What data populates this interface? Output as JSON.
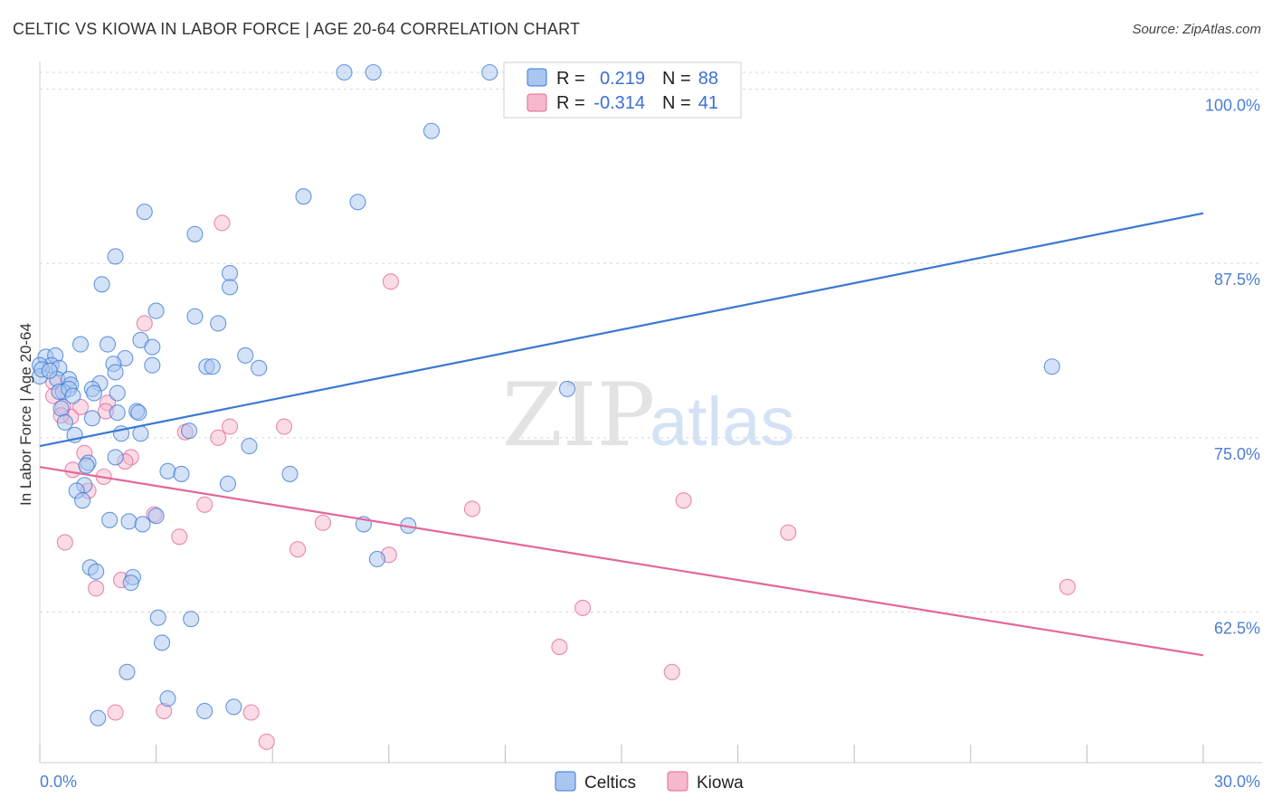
{
  "title": "CELTIC VS KIOWA IN LABOR FORCE | AGE 20-64 CORRELATION CHART",
  "source": "Source: ZipAtlas.com",
  "watermark": {
    "zip": "ZIP",
    "atlas": "atlas"
  },
  "colors": {
    "blue": "#3a78d4",
    "blue_fill": "#a9c6f0",
    "pink": "#e2679a",
    "pink_fill": "#f5b8cd",
    "axis_label": "#4a7fd4",
    "grid": "#d8d8d8"
  },
  "legend": {
    "rows": [
      {
        "r_label": "R =",
        "r_value": "0.219",
        "n_label": "N =",
        "n_value": "88"
      },
      {
        "r_label": "R =",
        "r_value": "-0.314",
        "n_label": "N =",
        "n_value": "41"
      }
    ]
  },
  "bottom_legend": [
    "Celtics",
    "Kiowa"
  ],
  "chart_data": {
    "type": "scatter",
    "title": "CELTIC VS KIOWA IN LABOR FORCE | AGE 20-64 CORRELATION CHART",
    "xlabel": "",
    "ylabel": "In Labor Force | Age 20-64",
    "xlim": [
      0.0,
      30.0
    ],
    "ylim": [
      51.7,
      101.2
    ],
    "x_tick_labels": [
      {
        "value": 0.0,
        "label": "0.0%"
      },
      {
        "value": 30.0,
        "label": "30.0%"
      }
    ],
    "y_tick_labels": [
      {
        "value": 100.0,
        "label": "100.0%"
      },
      {
        "value": 87.5,
        "label": "87.5%"
      },
      {
        "value": 75.0,
        "label": "75.0%"
      },
      {
        "value": 62.5,
        "label": "62.5%"
      }
    ],
    "series": [
      {
        "name": "Celtics",
        "r": 0.219,
        "n": 88,
        "trend": {
          "x": [
            0.0,
            30.0
          ],
          "y": [
            74.4,
            91.1
          ]
        },
        "points": [
          [
            7.85,
            101.2
          ],
          [
            8.6,
            101.2
          ],
          [
            11.6,
            101.2
          ],
          [
            10.1,
            97.0
          ],
          [
            6.8,
            92.3
          ],
          [
            8.2,
            91.9
          ],
          [
            2.7,
            91.2
          ],
          [
            4.0,
            89.6
          ],
          [
            1.95,
            88.0
          ],
          [
            4.9,
            86.8
          ],
          [
            1.6,
            86.0
          ],
          [
            4.9,
            85.8
          ],
          [
            3.0,
            84.1
          ],
          [
            4.0,
            83.7
          ],
          [
            4.6,
            83.2
          ],
          [
            2.6,
            82.0
          ],
          [
            1.05,
            81.7
          ],
          [
            1.75,
            81.7
          ],
          [
            2.9,
            81.5
          ],
          [
            0.15,
            80.8
          ],
          [
            0.4,
            80.9
          ],
          [
            2.2,
            80.7
          ],
          [
            5.3,
            80.9
          ],
          [
            1.9,
            80.3
          ],
          [
            2.9,
            80.2
          ],
          [
            4.3,
            80.1
          ],
          [
            4.45,
            80.1
          ],
          [
            5.65,
            80.0
          ],
          [
            26.1,
            80.1
          ],
          [
            0.3,
            80.2
          ],
          [
            0.5,
            80.0
          ],
          [
            1.95,
            79.7
          ],
          [
            0.0,
            80.2
          ],
          [
            0.0,
            79.4
          ],
          [
            0.45,
            79.2
          ],
          [
            0.75,
            79.2
          ],
          [
            0.8,
            78.8
          ],
          [
            1.55,
            78.9
          ],
          [
            1.35,
            78.5
          ],
          [
            0.6,
            78.3
          ],
          [
            0.5,
            78.3
          ],
          [
            0.75,
            78.5
          ],
          [
            0.85,
            78.0
          ],
          [
            1.4,
            78.2
          ],
          [
            2.0,
            78.2
          ],
          [
            13.6,
            78.5
          ],
          [
            0.55,
            77.1
          ],
          [
            2.0,
            76.8
          ],
          [
            2.5,
            76.9
          ],
          [
            2.55,
            76.8
          ],
          [
            1.35,
            76.4
          ],
          [
            0.65,
            76.1
          ],
          [
            0.9,
            75.2
          ],
          [
            2.1,
            75.3
          ],
          [
            2.6,
            75.3
          ],
          [
            3.85,
            75.5
          ],
          [
            5.4,
            74.4
          ],
          [
            1.95,
            73.6
          ],
          [
            1.25,
            73.2
          ],
          [
            1.2,
            73.0
          ],
          [
            3.3,
            72.6
          ],
          [
            3.65,
            72.4
          ],
          [
            6.45,
            72.4
          ],
          [
            4.85,
            71.7
          ],
          [
            1.15,
            71.6
          ],
          [
            0.95,
            71.2
          ],
          [
            1.1,
            70.5
          ],
          [
            3.0,
            69.4
          ],
          [
            1.8,
            69.1
          ],
          [
            2.3,
            69.0
          ],
          [
            2.65,
            68.8
          ],
          [
            8.35,
            68.8
          ],
          [
            9.5,
            68.7
          ],
          [
            8.7,
            66.3
          ],
          [
            1.3,
            65.7
          ],
          [
            1.45,
            65.4
          ],
          [
            2.4,
            65.0
          ],
          [
            2.35,
            64.6
          ],
          [
            3.05,
            62.1
          ],
          [
            3.9,
            62.0
          ],
          [
            3.15,
            60.3
          ],
          [
            2.25,
            58.2
          ],
          [
            3.3,
            56.3
          ],
          [
            5.0,
            55.7
          ],
          [
            1.5,
            54.9
          ],
          [
            4.25,
            55.4
          ],
          [
            0.05,
            79.9
          ],
          [
            0.25,
            79.8
          ]
        ]
      },
      {
        "name": "Kiowa",
        "r": -0.314,
        "n": 41,
        "trend": {
          "x": [
            0.0,
            30.0
          ],
          "y": [
            72.9,
            59.4
          ]
        },
        "points": [
          [
            4.7,
            90.4
          ],
          [
            9.05,
            86.2
          ],
          [
            2.7,
            83.2
          ],
          [
            0.35,
            79.0
          ],
          [
            0.35,
            78.0
          ],
          [
            0.6,
            77.2
          ],
          [
            1.75,
            77.5
          ],
          [
            1.05,
            77.2
          ],
          [
            1.7,
            76.9
          ],
          [
            0.8,
            76.5
          ],
          [
            0.55,
            76.6
          ],
          [
            4.9,
            75.8
          ],
          [
            6.3,
            75.8
          ],
          [
            3.75,
            75.4
          ],
          [
            4.6,
            75.0
          ],
          [
            1.15,
            73.9
          ],
          [
            2.35,
            73.6
          ],
          [
            2.2,
            73.3
          ],
          [
            0.85,
            72.7
          ],
          [
            1.65,
            72.2
          ],
          [
            1.25,
            71.2
          ],
          [
            4.25,
            70.2
          ],
          [
            11.15,
            69.9
          ],
          [
            16.6,
            70.5
          ],
          [
            2.95,
            69.5
          ],
          [
            7.3,
            68.9
          ],
          [
            19.3,
            68.2
          ],
          [
            3.6,
            67.9
          ],
          [
            0.65,
            67.5
          ],
          [
            6.65,
            67.0
          ],
          [
            9.0,
            66.6
          ],
          [
            1.45,
            64.2
          ],
          [
            2.1,
            64.8
          ],
          [
            26.5,
            64.3
          ],
          [
            14.0,
            62.8
          ],
          [
            13.4,
            60.0
          ],
          [
            16.3,
            58.2
          ],
          [
            1.95,
            55.3
          ],
          [
            3.2,
            55.4
          ],
          [
            5.45,
            55.3
          ],
          [
            5.85,
            53.2
          ]
        ]
      }
    ]
  }
}
